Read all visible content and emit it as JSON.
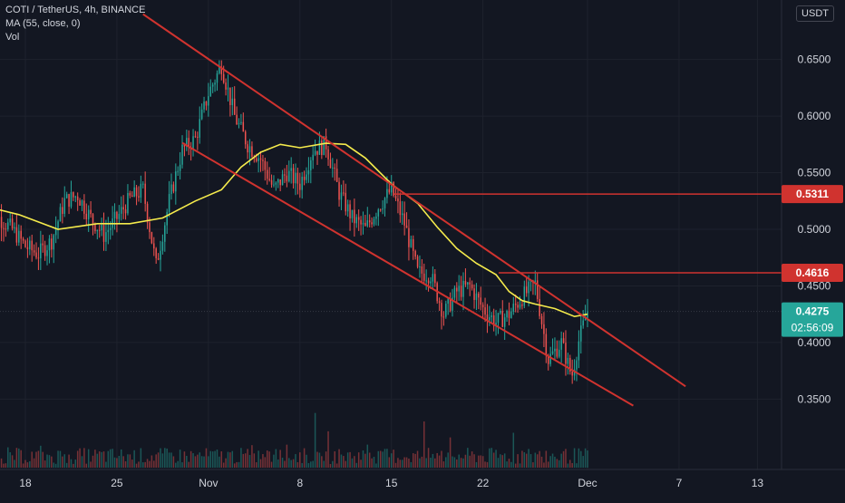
{
  "header": {
    "symbol_line": "COTI / TetherUS, 4h, BINANCE",
    "ma_line": "MA (55, close, 0)",
    "vol_line": "Vol"
  },
  "currency_button": "USDT",
  "colors": {
    "background": "#131722",
    "up": "#26a69a",
    "down": "#ef5350",
    "ma": "#f5eb4c",
    "channel": "#d0332f",
    "level": "#d0332f",
    "grid": "#1e222d",
    "text": "#d1d4dc"
  },
  "chart_data": {
    "type": "candlestick",
    "y_axis": {
      "range": [
        0.3175,
        0.6857
      ],
      "ticks": [
        "0.6500",
        "0.6000",
        "0.5500",
        "0.5000",
        "0.4500",
        "0.4000",
        "0.3500"
      ],
      "tick_values": [
        0.65,
        0.6,
        0.55,
        0.5,
        0.45,
        0.4,
        0.35
      ]
    },
    "x_axis": {
      "range_days": [
        15.0,
        45.5
      ],
      "ticks": [
        "18",
        "25",
        "Nov",
        "8",
        "15",
        "22",
        "Dec",
        "7",
        "13"
      ],
      "tick_days": [
        18,
        25,
        32,
        39,
        46,
        53,
        61,
        68,
        74
      ],
      "notes": "day numbers counted from Oct 1 (Nov 1 = 32, Dec 1 = 61)"
    },
    "price_labels": [
      {
        "value": "0.5311",
        "color": "#d0332f"
      },
      {
        "value": "0.4616",
        "color": "#d0332f"
      },
      {
        "value": "0.4275",
        "sub": "02:56:09",
        "color": "#26a69a"
      }
    ],
    "horizontal_levels": [
      {
        "price": 0.5311,
        "from_day": 46.2
      },
      {
        "price": 0.4616,
        "from_day": 54.2
      }
    ],
    "channel_lines": [
      {
        "from": [
          27.0,
          0.69
        ],
        "to": [
          68.5,
          0.3613
        ]
      },
      {
        "from": [
          30.0,
          0.5763
        ],
        "to": [
          64.5,
          0.3442
        ]
      }
    ],
    "last_price": 0.4275,
    "ma_curve": [
      [
        15.0,
        0.52
      ],
      [
        17.5,
        0.513
      ],
      [
        20.5,
        0.5
      ],
      [
        23.5,
        0.505
      ],
      [
        26.0,
        0.505
      ],
      [
        28.5,
        0.51
      ],
      [
        31.0,
        0.525
      ],
      [
        33.0,
        0.535
      ],
      [
        34.5,
        0.555
      ],
      [
        36.0,
        0.568
      ],
      [
        37.5,
        0.575
      ],
      [
        39.0,
        0.572
      ],
      [
        41.0,
        0.576
      ],
      [
        42.5,
        0.575
      ],
      [
        44.0,
        0.563
      ],
      [
        46.0,
        0.54
      ],
      [
        48.0,
        0.523
      ],
      [
        49.5,
        0.502
      ],
      [
        51.0,
        0.483
      ],
      [
        52.5,
        0.47
      ],
      [
        54.0,
        0.46
      ],
      [
        55.0,
        0.445
      ],
      [
        56.0,
        0.437
      ],
      [
        57.0,
        0.434
      ],
      [
        58.5,
        0.43
      ],
      [
        60.0,
        0.423
      ],
      [
        61.0,
        0.425
      ]
    ],
    "price_path": [
      [
        15.0,
        0.525
      ],
      [
        16.0,
        0.51
      ],
      [
        17.0,
        0.5
      ],
      [
        18.0,
        0.485
      ],
      [
        19.0,
        0.478
      ],
      [
        20.0,
        0.49
      ],
      [
        21.0,
        0.525
      ],
      [
        22.0,
        0.53
      ],
      [
        23.0,
        0.51
      ],
      [
        24.0,
        0.495
      ],
      [
        25.0,
        0.51
      ],
      [
        26.0,
        0.527
      ],
      [
        27.0,
        0.535
      ],
      [
        28.0,
        0.468
      ],
      [
        29.0,
        0.525
      ],
      [
        30.0,
        0.57
      ],
      [
        31.0,
        0.58
      ],
      [
        32.0,
        0.62
      ],
      [
        33.0,
        0.645
      ],
      [
        34.0,
        0.6
      ],
      [
        35.0,
        0.575
      ],
      [
        36.0,
        0.562
      ],
      [
        37.0,
        0.535
      ],
      [
        38.0,
        0.55
      ],
      [
        39.0,
        0.54
      ],
      [
        40.0,
        0.57
      ],
      [
        41.0,
        0.575
      ],
      [
        42.0,
        0.532
      ],
      [
        43.0,
        0.51
      ],
      [
        44.0,
        0.5
      ],
      [
        45.0,
        0.52
      ],
      [
        46.0,
        0.535
      ],
      [
        47.0,
        0.505
      ],
      [
        48.0,
        0.462
      ],
      [
        49.0,
        0.46
      ],
      [
        50.0,
        0.425
      ],
      [
        51.0,
        0.445
      ],
      [
        52.0,
        0.45
      ],
      [
        53.0,
        0.43
      ],
      [
        54.0,
        0.418
      ],
      [
        55.0,
        0.425
      ],
      [
        56.0,
        0.44
      ],
      [
        57.0,
        0.452
      ],
      [
        58.0,
        0.385
      ],
      [
        59.0,
        0.4
      ],
      [
        59.8,
        0.37
      ],
      [
        60.3,
        0.4
      ],
      [
        61.0,
        0.428
      ]
    ]
  }
}
